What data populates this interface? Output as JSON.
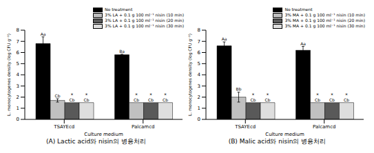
{
  "chart_data": [
    {
      "type": "bar",
      "title": "(A) Lactic acid와 nisin의 병용처리",
      "x_label": "Culture medium",
      "y_label": "L. monocytogenes density (log CFU g⁻¹)",
      "categories": [
        "TSAYEcd",
        "Palcamcd"
      ],
      "ylim": [
        0,
        8
      ],
      "yticks": [
        0,
        1,
        2,
        3,
        4,
        5,
        6,
        7,
        8
      ],
      "grid": false,
      "legend": "upper right",
      "series": [
        {
          "name": "No treatment",
          "color": "#000000",
          "values": [
            6.8,
            5.8
          ],
          "errors": [
            0.6,
            0.05
          ],
          "letters": [
            "Aa",
            "Ba"
          ],
          "asterisks": [
            null,
            null
          ]
        },
        {
          "name": "3% LA + 0.1 g 100 ml⁻¹ nisin (10 min)",
          "color": "#c0c0c0",
          "values": [
            1.7,
            1.5
          ],
          "errors": [
            0.15,
            0
          ],
          "letters": [
            "Cb",
            "Cb"
          ],
          "asterisks": [
            null,
            "*"
          ]
        },
        {
          "name": "3% LA + 0.1 g 100 ml⁻¹ nisin (20 min)",
          "color": "#595959",
          "values": [
            1.5,
            1.5
          ],
          "errors": [
            0,
            0
          ],
          "letters": [
            "Cb",
            "Cb"
          ],
          "asterisks": [
            "*",
            "*"
          ]
        },
        {
          "name": "3% LA + 0.1 g 100 ml⁻¹ nisin (30 min)",
          "color": "#dedede",
          "values": [
            1.5,
            1.5
          ],
          "errors": [
            0,
            0
          ],
          "letters": [
            "Cb",
            "Cb"
          ],
          "asterisks": [
            "*",
            "*"
          ]
        }
      ]
    },
    {
      "type": "bar",
      "title": "(B) Malic acid와 nisin의 병용처리",
      "x_label": "Culture medium",
      "y_label": "L. monocytogenes density (log CFU g⁻¹)",
      "categories": [
        "TSAYEcd",
        "Palcamcd"
      ],
      "ylim": [
        0,
        8
      ],
      "yticks": [
        0,
        1,
        2,
        3,
        4,
        5,
        6,
        7,
        8
      ],
      "grid": false,
      "legend": "upper right",
      "series": [
        {
          "name": "No treatment",
          "color": "#000000",
          "values": [
            6.6,
            6.2
          ],
          "errors": [
            0.35,
            0.35
          ],
          "letters": [
            "Aa",
            "Aa"
          ],
          "asterisks": [
            null,
            null
          ]
        },
        {
          "name": "3% MA + 0.1 g 100 ml⁻¹ nisin (10 min)",
          "color": "#c0c0c0",
          "values": [
            2.0,
            1.5
          ],
          "errors": [
            0.45,
            0
          ],
          "letters": [
            "Bb",
            "Cb"
          ],
          "asterisks": [
            null,
            "*"
          ]
        },
        {
          "name": "3% MA + 0.1 g 100 ml⁻¹ nisin (20 min)",
          "color": "#595959",
          "values": [
            1.5,
            1.5
          ],
          "errors": [
            0,
            0
          ],
          "letters": [
            "Cb",
            "Cb"
          ],
          "asterisks": [
            "*",
            "*"
          ]
        },
        {
          "name": "3% MA + 0.1 g 100 ml⁻¹ nisin (30 min)",
          "color": "#dedede",
          "values": [
            1.5,
            1.5
          ],
          "errors": [
            0,
            0
          ],
          "letters": [
            "Cb",
            "Cb"
          ],
          "asterisks": [
            "*",
            "*"
          ]
        }
      ]
    }
  ]
}
